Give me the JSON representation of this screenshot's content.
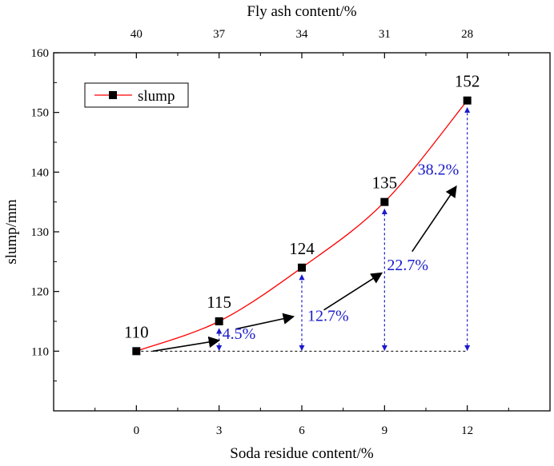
{
  "chart_data": {
    "type": "line",
    "x": [
      0,
      3,
      6,
      9,
      12
    ],
    "series": [
      {
        "name": "slump",
        "values": [
          110,
          115,
          124,
          135,
          152
        ],
        "color": "#ff0000",
        "marker": "square"
      }
    ],
    "xlabel": "Soda residue content/%",
    "ylabel": "slump/mm",
    "x2label": "Fly ash content/%",
    "xlim": [
      -3,
      15
    ],
    "ylim": [
      100,
      160
    ],
    "x_ticks": [
      0,
      3,
      6,
      9,
      12
    ],
    "x_tick_labels": [
      "0",
      "3",
      "6",
      "9",
      "12"
    ],
    "y_ticks": [
      110,
      120,
      130,
      140,
      150,
      160
    ],
    "y_tick_labels": [
      "110",
      "120",
      "130",
      "140",
      "150",
      "160"
    ],
    "x2_tick_labels": [
      "40",
      "37",
      "34",
      "31",
      "28"
    ],
    "data_labels": [
      "110",
      "115",
      "124",
      "135",
      "152"
    ],
    "increase_labels": [
      {
        "x": 3,
        "text": "4.5%"
      },
      {
        "x": 6,
        "text": "12.7%"
      },
      {
        "x": 9,
        "text": "22.7%"
      },
      {
        "x": 12,
        "text": "38.2%"
      }
    ],
    "baseline": 110,
    "legend": {
      "position": "top-left",
      "entries": [
        "slump"
      ]
    },
    "grid": false,
    "annotation_color": "#1a1acc"
  }
}
